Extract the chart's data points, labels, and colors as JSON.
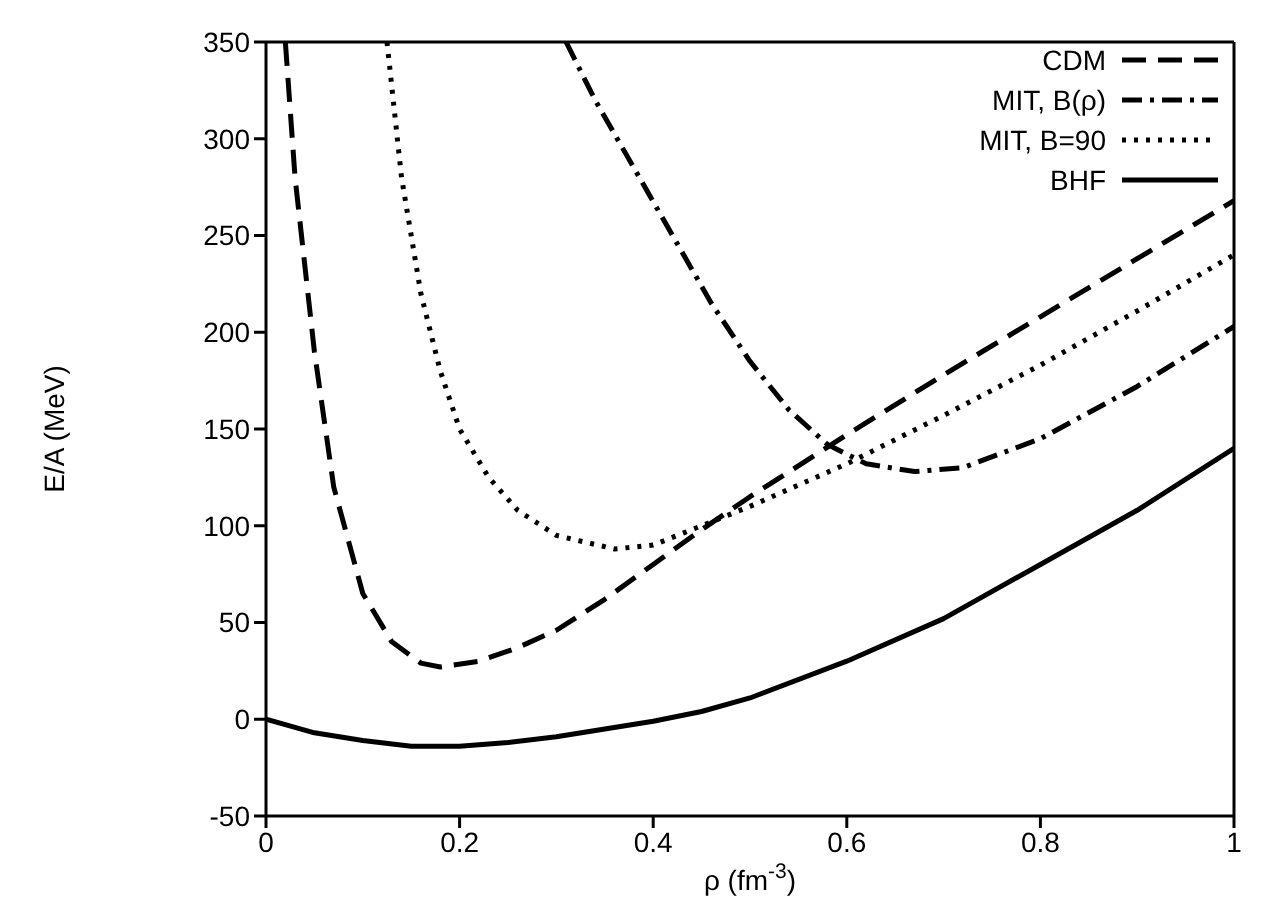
{
  "chart_data": {
    "type": "line",
    "xlabel": "ρ (fm$^{-3}$)",
    "ylabel": "E/A (MeV)",
    "xlim": [
      0,
      1
    ],
    "ylim": [
      -50,
      350
    ],
    "xticks": [
      0,
      0.2,
      0.4,
      0.6,
      0.8,
      1
    ],
    "yticks": [
      -50,
      0,
      50,
      100,
      150,
      200,
      250,
      300,
      350
    ],
    "legend": "top right",
    "marker": "none",
    "series": [
      {
        "name": "CDM",
        "color": "#000000",
        "line_style": "dashed",
        "x": [
          0.02,
          0.03,
          0.05,
          0.07,
          0.1,
          0.13,
          0.16,
          0.18,
          0.22,
          0.26,
          0.3,
          0.35,
          0.4,
          0.45,
          0.5,
          0.6,
          0.7,
          0.8,
          0.9,
          1
        ],
        "values": [
          350,
          280,
          190,
          120,
          65,
          40,
          29,
          27,
          30,
          37,
          46,
          62,
          80,
          98,
          115,
          147,
          178,
          208,
          238,
          268
        ]
      },
      {
        "name": "MIT, B(ρ)",
        "color": "#000000",
        "line_style": "dashdot",
        "x": [
          0.31,
          0.34,
          0.38,
          0.42,
          0.46,
          0.5,
          0.54,
          0.58,
          0.62,
          0.67,
          0.72,
          0.8,
          0.9,
          1
        ],
        "values": [
          350,
          320,
          285,
          250,
          215,
          185,
          160,
          142,
          132,
          128,
          130,
          145,
          172,
          203
        ]
      },
      {
        "name": "MIT, B=90",
        "color": "#000000",
        "line_style": "dotted",
        "x": [
          0.125,
          0.14,
          0.16,
          0.18,
          0.2,
          0.23,
          0.26,
          0.3,
          0.36,
          0.4,
          0.45,
          0.5,
          0.6,
          0.7,
          0.8,
          0.9,
          1
        ],
        "values": [
          350,
          280,
          220,
          180,
          150,
          125,
          108,
          95,
          88,
          90,
          100,
          110,
          132,
          157,
          183,
          211,
          240
        ]
      },
      {
        "name": "BHF",
        "color": "#000000",
        "line_style": "solid",
        "x": [
          0,
          0.05,
          0.1,
          0.15,
          0.2,
          0.25,
          0.3,
          0.35,
          0.4,
          0.45,
          0.5,
          0.6,
          0.7,
          0.8,
          0.9,
          1
        ],
        "values": [
          0,
          -7,
          -11,
          -14,
          -14,
          -12,
          -9,
          -5,
          -1,
          4,
          11,
          30,
          52,
          80,
          108,
          140
        ]
      }
    ]
  }
}
